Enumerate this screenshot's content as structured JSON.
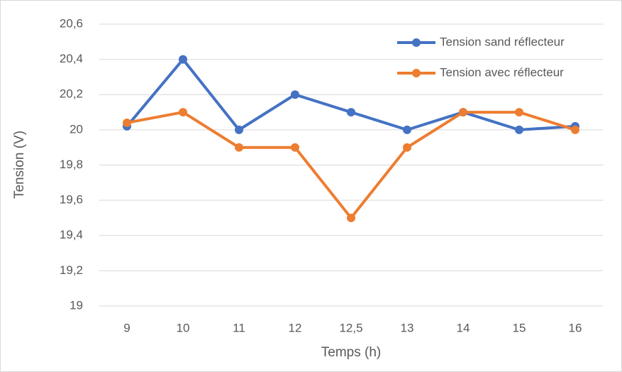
{
  "chart_data": {
    "type": "line",
    "xlabel": "Temps (h)",
    "ylabel": "Tension (V)",
    "categories": [
      "9",
      "10",
      "11",
      "12",
      "12,5",
      "13",
      "14",
      "15",
      "16"
    ],
    "series": [
      {
        "name": "Tension sand réflecteur",
        "color": "#4472c4",
        "values": [
          20.02,
          20.4,
          20,
          20.2,
          20.1,
          20,
          20.1,
          20,
          20.02
        ]
      },
      {
        "name": "Tension avec réflecteur",
        "color": "#ed7d31",
        "values": [
          20.04,
          20.1,
          19.9,
          19.9,
          19.5,
          19.9,
          20.1,
          20.1,
          20
        ]
      }
    ],
    "ylim": [
      19,
      20.6
    ],
    "yticks": [
      19,
      {
        "value": 19.2,
        "label": "19,2"
      },
      {
        "value": 19.4,
        "label": "19,4"
      },
      {
        "value": 19.6,
        "label": "19,6"
      },
      {
        "value": 19.8,
        "label": "19,8"
      },
      20,
      {
        "value": 20.2,
        "label": "20,2"
      },
      {
        "value": 20.4,
        "label": "20,4"
      },
      {
        "value": 20.6,
        "label": "20,6"
      }
    ],
    "grid": true,
    "legend": "upper right"
  }
}
